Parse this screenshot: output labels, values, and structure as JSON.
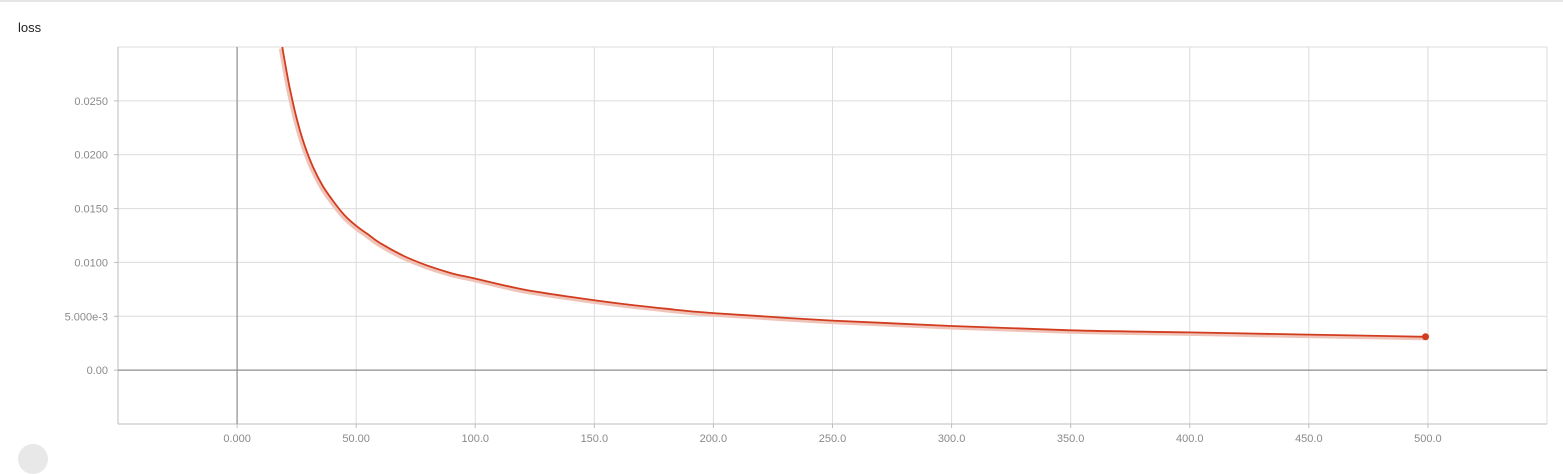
{
  "chart_data": {
    "type": "line",
    "title": "loss",
    "xlim": [
      -50,
      550
    ],
    "ylim": [
      -0.005,
      0.03
    ],
    "grid": true,
    "x_ticks": [
      0,
      50,
      100,
      150,
      200,
      250,
      300,
      350,
      400,
      450,
      500
    ],
    "x_tick_labels": [
      "0.000",
      "50.00",
      "100.0",
      "150.0",
      "200.0",
      "250.0",
      "300.0",
      "350.0",
      "400.0",
      "450.0",
      "500.0"
    ],
    "y_ticks": [
      0,
      0.005,
      0.01,
      0.015,
      0.02,
      0.025
    ],
    "y_tick_labels": [
      "0.00",
      "5.000e-3",
      "0.0100",
      "0.0150",
      "0.0200",
      "0.0250"
    ],
    "series": [
      {
        "color": "#d23c1e",
        "x": [
          19,
          20,
          22,
          25,
          28,
          32,
          36,
          40,
          45,
          50,
          55,
          60,
          70,
          80,
          90,
          100,
          120,
          140,
          160,
          180,
          200,
          250,
          300,
          350,
          400,
          450,
          499
        ],
        "y": [
          0.03,
          0.0287,
          0.0263,
          0.0234,
          0.0211,
          0.0188,
          0.0171,
          0.0158,
          0.0144,
          0.0134,
          0.0126,
          0.0118,
          0.0106,
          0.0097,
          0.009,
          0.0085,
          0.0075,
          0.0068,
          0.0062,
          0.0057,
          0.0053,
          0.0046,
          0.0041,
          0.0037,
          0.0035,
          0.0033,
          0.0031
        ]
      }
    ],
    "last_point": {
      "x": 499,
      "y": 0.0031
    }
  }
}
